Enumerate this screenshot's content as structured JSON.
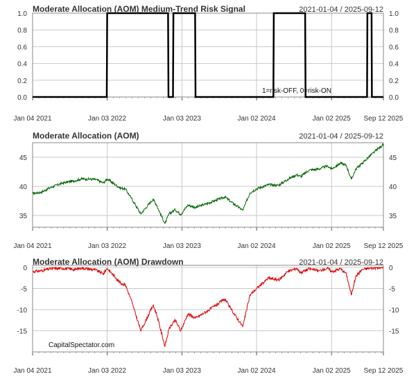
{
  "watermark": "CapitalSpectator.com",
  "date_range": "2021-01-04 / 2025-09-12",
  "x_axis": {
    "start": "2021-01-04",
    "end": "2025-09-12",
    "ticks": [
      {
        "label": "Jan 04 2021",
        "date": "2021-01-04"
      },
      {
        "label": "Jan 03 2022",
        "date": "2022-01-03"
      },
      {
        "label": "Jan 03 2023",
        "date": "2023-01-03"
      },
      {
        "label": "Jan 02 2024",
        "date": "2024-01-02"
      },
      {
        "label": "Jan 02 2025",
        "date": "2025-01-02"
      },
      {
        "label": "Sep 12 2025",
        "date": "2025-09-12"
      }
    ]
  },
  "chart_data": [
    {
      "type": "line",
      "title": "Moderate Allocation (AOM) Medium-Trend Risk Signal",
      "range_label": "2021-01-04 / 2025-09-12",
      "annotation": "1=risk-OFF, 0=risk-ON",
      "color": "#000000",
      "ylim": [
        0,
        1
      ],
      "yticks": [
        "0.0",
        "0.2",
        "0.4",
        "0.6",
        "0.8",
        "1.0"
      ],
      "step": true,
      "x": [
        "2021-01-04",
        "2022-01-01",
        "2022-01-03",
        "2022-10-27",
        "2022-10-29",
        "2022-11-20",
        "2022-11-22",
        "2023-03-08",
        "2023-03-10",
        "2024-03-24",
        "2024-03-26",
        "2024-08-26",
        "2024-08-28",
        "2025-06-24",
        "2025-06-26",
        "2025-07-16",
        "2025-07-18",
        "2025-09-12"
      ],
      "values": [
        0,
        0,
        1,
        1,
        0,
        0,
        1,
        1,
        0,
        0,
        1,
        1,
        0,
        0,
        1,
        1,
        0,
        0
      ]
    },
    {
      "type": "line",
      "title": "Moderate Allocation (AOM)",
      "range_label": "2021-01-04 / 2025-09-12",
      "color": "#006400",
      "ylim": [
        33,
        47.5
      ],
      "yticks": [
        "35",
        "40",
        "45"
      ],
      "x": [
        "2021-01-04",
        "2021-02-15",
        "2021-04-01",
        "2021-06-01",
        "2021-08-01",
        "2021-09-01",
        "2021-11-08",
        "2021-12-15",
        "2022-01-03",
        "2022-02-15",
        "2022-03-10",
        "2022-04-01",
        "2022-05-01",
        "2022-06-16",
        "2022-08-15",
        "2022-09-01",
        "2022-10-12",
        "2022-11-01",
        "2022-12-01",
        "2022-12-28",
        "2023-02-01",
        "2023-03-10",
        "2023-05-01",
        "2023-07-31",
        "2023-09-01",
        "2023-10-27",
        "2023-12-01",
        "2024-01-02",
        "2024-03-01",
        "2024-04-19",
        "2024-06-01",
        "2024-07-15",
        "2024-08-05",
        "2024-09-15",
        "2024-11-01",
        "2024-12-15",
        "2025-01-02",
        "2025-02-15",
        "2025-03-15",
        "2025-04-08",
        "2025-05-01",
        "2025-06-01",
        "2025-07-01",
        "2025-08-01",
        "2025-09-12"
      ],
      "values": [
        38.8,
        39.0,
        39.8,
        40.6,
        41.0,
        41.3,
        41.2,
        40.6,
        41.3,
        40.2,
        39.7,
        39.6,
        38.0,
        35.3,
        37.8,
        36.8,
        33.6,
        35.3,
        36.0,
        35.2,
        36.8,
        36.4,
        37.0,
        38.2,
        37.3,
        35.9,
        38.9,
        39.6,
        40.3,
        40.2,
        41.2,
        42.0,
        41.7,
        42.8,
        43.0,
        43.5,
        43.0,
        44.0,
        43.6,
        41.2,
        43.0,
        44.0,
        45.0,
        46.0,
        47.2
      ]
    },
    {
      "type": "line",
      "title": "Moderate Allocation (AOM) Drawdown",
      "range_label": "2021-01-04 / 2025-09-12",
      "color": "#dd0000",
      "ylim": [
        -20,
        0.5
      ],
      "yticks": [
        "-15",
        "-10",
        "-5",
        "0"
      ],
      "x": [
        "2021-01-04",
        "2021-02-15",
        "2021-04-01",
        "2021-06-01",
        "2021-08-01",
        "2021-09-01",
        "2021-11-08",
        "2021-12-15",
        "2022-01-03",
        "2022-02-15",
        "2022-03-10",
        "2022-04-01",
        "2022-05-01",
        "2022-06-16",
        "2022-08-15",
        "2022-09-01",
        "2022-10-12",
        "2022-11-01",
        "2022-12-01",
        "2022-12-28",
        "2023-02-01",
        "2023-03-10",
        "2023-05-01",
        "2023-07-31",
        "2023-09-01",
        "2023-10-27",
        "2023-12-01",
        "2024-01-02",
        "2024-03-01",
        "2024-04-19",
        "2024-06-01",
        "2024-07-15",
        "2024-08-05",
        "2024-09-15",
        "2024-11-01",
        "2024-12-15",
        "2025-01-02",
        "2025-02-15",
        "2025-03-15",
        "2025-04-08",
        "2025-05-01",
        "2025-06-01",
        "2025-07-01",
        "2025-08-01",
        "2025-09-12"
      ],
      "values": [
        -1.0,
        -0.8,
        -0.3,
        -0.2,
        -0.5,
        -0.1,
        -0.6,
        -1.5,
        -0.2,
        -2.5,
        -3.8,
        -4.0,
        -7.8,
        -15.0,
        -9.0,
        -11.0,
        -18.7,
        -14.5,
        -12.5,
        -15.0,
        -11.0,
        -12.0,
        -10.5,
        -7.5,
        -10.0,
        -14.0,
        -6.5,
        -5.0,
        -2.5,
        -3.0,
        -1.0,
        -0.2,
        -1.2,
        -0.3,
        -0.8,
        -0.2,
        -1.0,
        -0.3,
        -1.5,
        -6.5,
        -2.0,
        -0.5,
        -0.2,
        -0.1,
        0.0
      ]
    }
  ]
}
